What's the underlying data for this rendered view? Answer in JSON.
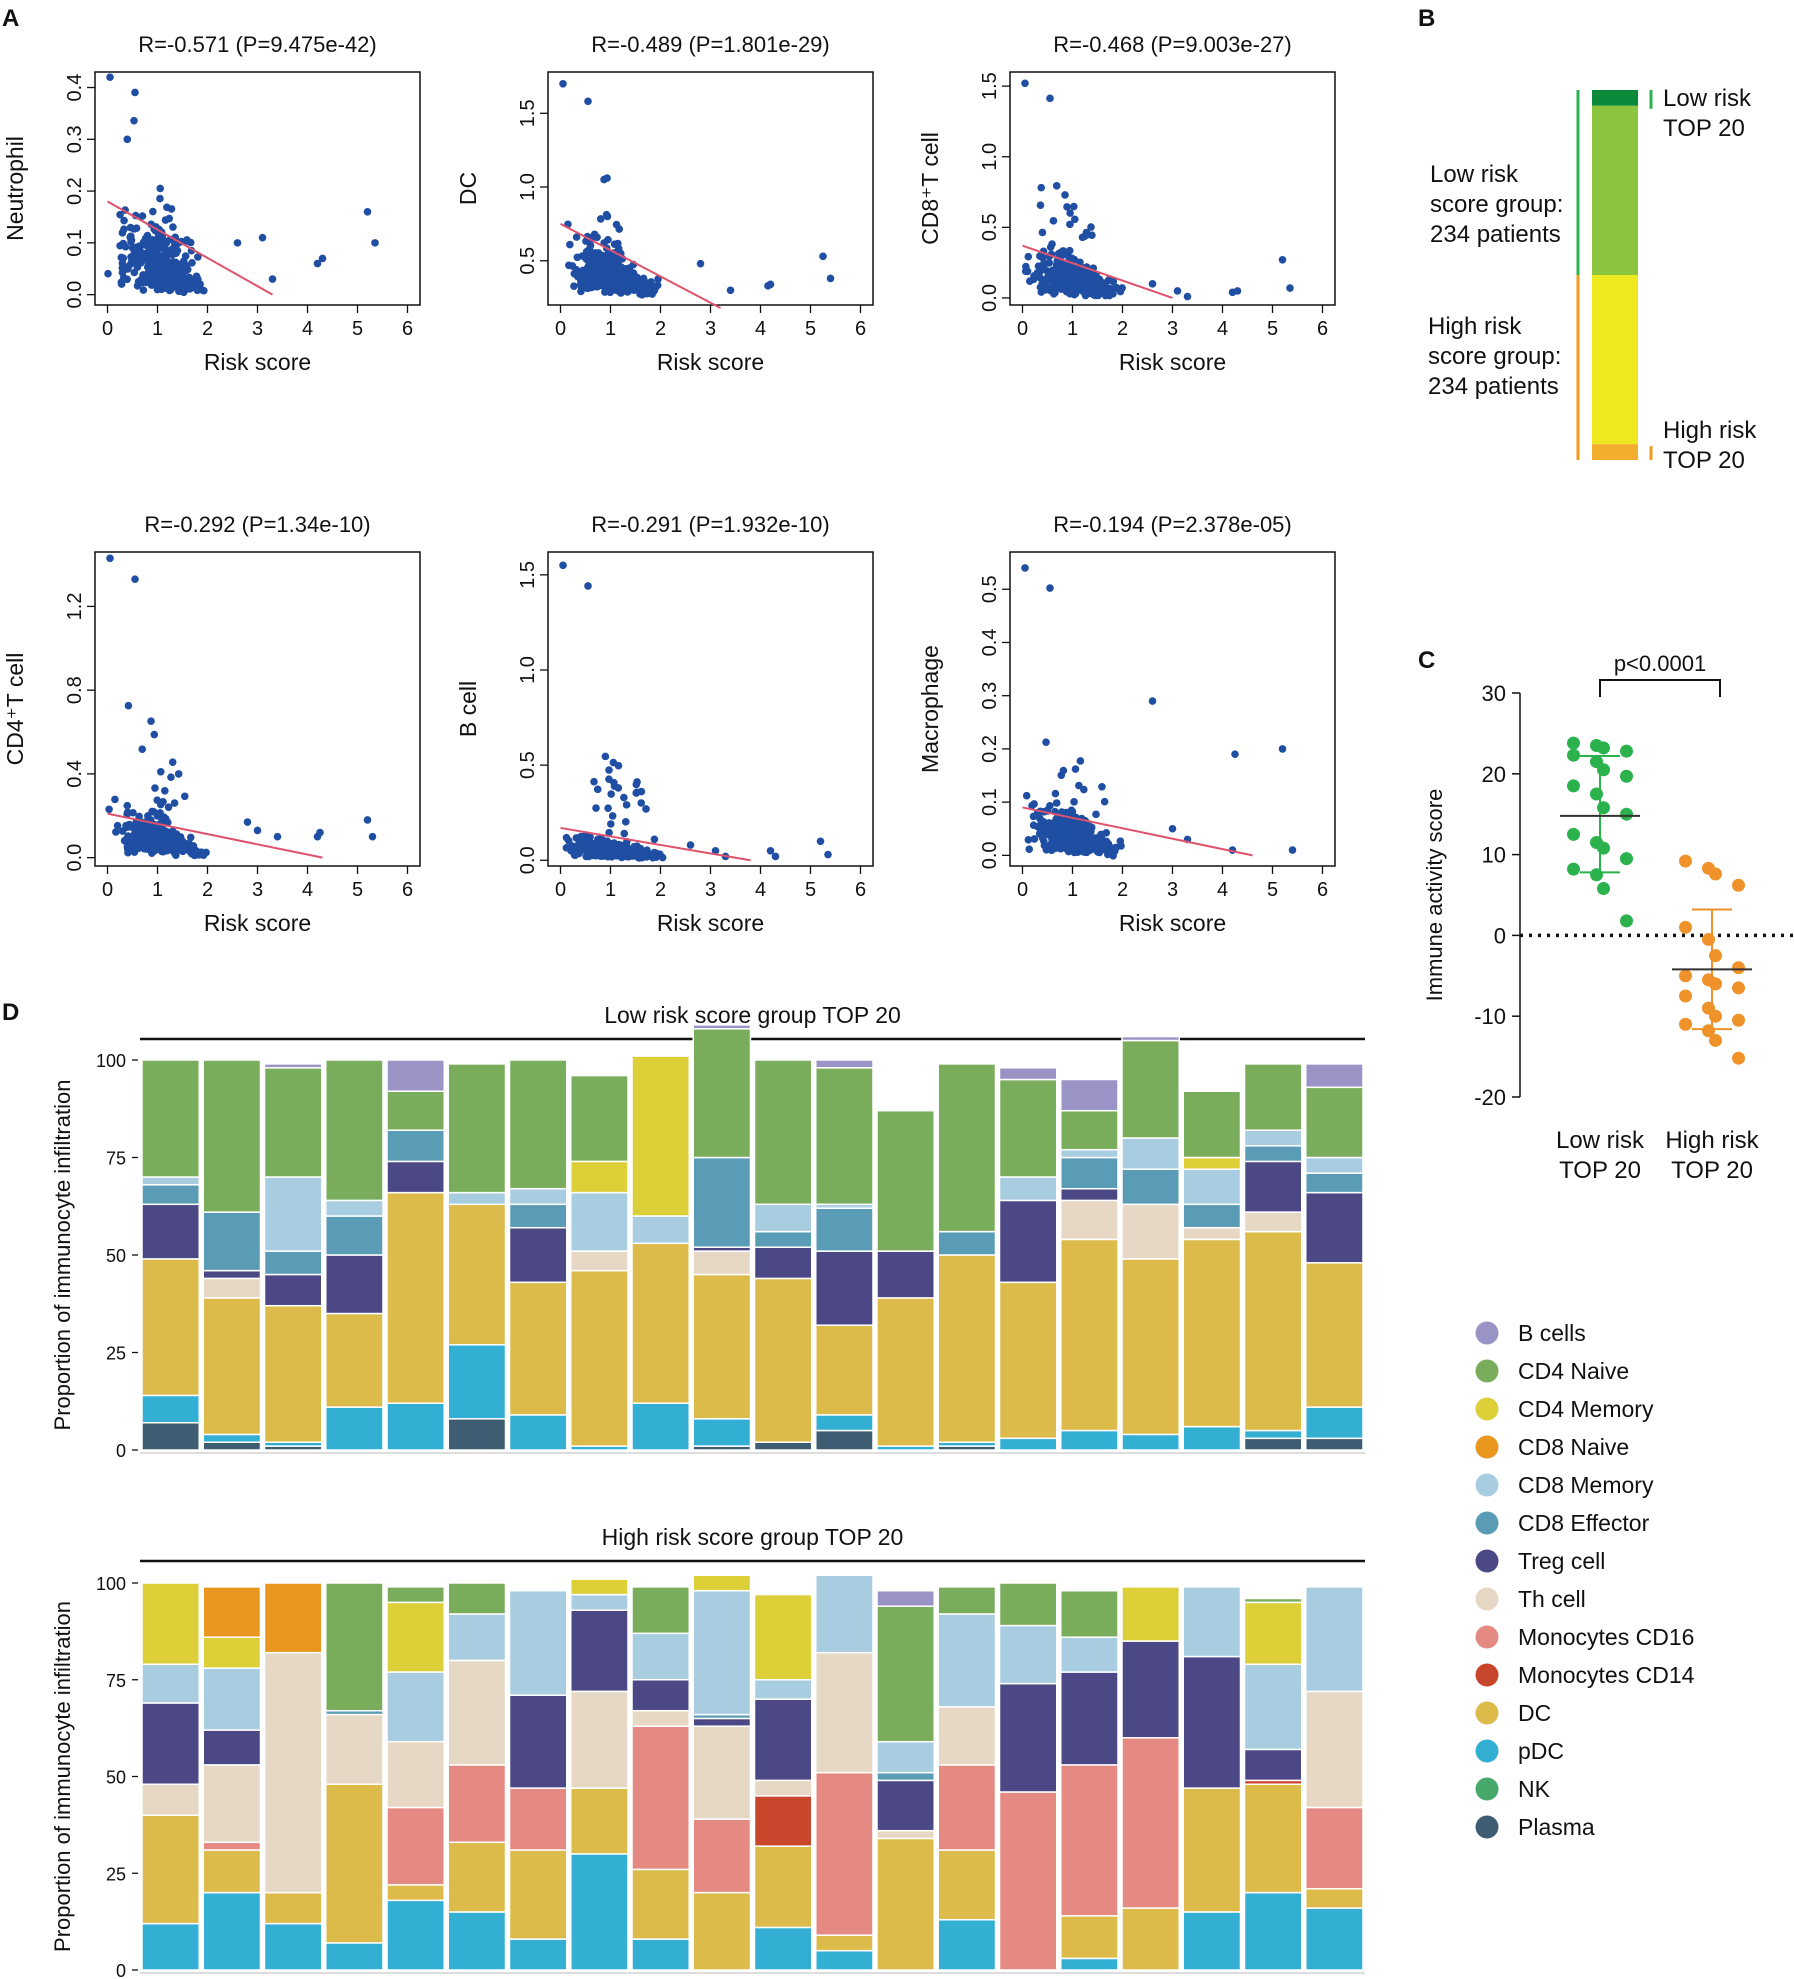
{
  "colors": {
    "point": "#1f4ea3",
    "fit_line": "#e0526b",
    "low_green": "#2bb24c",
    "high_orange": "#f0922a",
    "axis": "#111111",
    "bar_low_top": "#0a8a3a",
    "bar_low": "#8bc43f",
    "bar_high": "#eee81e",
    "bar_high_top": "#f3ae2e",
    "bracket_low": "#2bb24c",
    "bracket_high": "#f39a1e"
  },
  "panel_labels": {
    "a": "A",
    "b": "B",
    "c": "C",
    "d": "D"
  },
  "chart_data": [
    {
      "id": "scatter-neutrophil",
      "type": "scatter",
      "title": "R=-0.571 (P=9.475e-42)",
      "xlabel": "Risk score",
      "ylabel": "Neutrophil",
      "xlim": [
        -0.25,
        6.25
      ],
      "ylim": [
        -0.02,
        0.43
      ],
      "xticks": [
        "0",
        "1",
        "2",
        "3",
        "4",
        "5",
        "6"
      ],
      "yticks": [
        "0.0",
        "0.1",
        "0.2",
        "0.3",
        "0.4"
      ],
      "fit": {
        "x": [
          0,
          3.3
        ],
        "y": [
          0.18,
          0.0
        ]
      },
      "center_y": 0.09,
      "top_y": 0.42,
      "outliers": [
        [
          4.2,
          0.06
        ],
        [
          4.3,
          0.07
        ],
        [
          5.2,
          0.16
        ],
        [
          5.35,
          0.1
        ],
        [
          3.3,
          0.03
        ],
        [
          2.6,
          0.1
        ],
        [
          3.1,
          0.11
        ]
      ]
    },
    {
      "id": "scatter-dc",
      "type": "scatter",
      "title": "R=-0.489 (P=1.801e-29)",
      "xlabel": "Risk score",
      "ylabel": "DC",
      "xlim": [
        -0.25,
        6.25
      ],
      "ylim": [
        0.2,
        1.78
      ],
      "xticks": [
        "0",
        "1",
        "2",
        "3",
        "4",
        "5",
        "6"
      ],
      "yticks": [
        "0.5",
        "1.0",
        "1.5"
      ],
      "fit": {
        "x": [
          0,
          3.2
        ],
        "y": [
          0.75,
          0.18
        ]
      },
      "center_y": 0.5,
      "top_y": 1.7,
      "outliers": [
        [
          4.2,
          0.34
        ],
        [
          4.15,
          0.33
        ],
        [
          5.25,
          0.53
        ],
        [
          5.4,
          0.38
        ],
        [
          3.4,
          0.3
        ],
        [
          2.8,
          0.48
        ]
      ]
    },
    {
      "id": "scatter-cd8",
      "type": "scatter",
      "title": "R=-0.468 (P=9.003e-27)",
      "xlabel": "Risk score",
      "ylabel": "CD8⁺T cell",
      "xlim": [
        -0.25,
        6.25
      ],
      "ylim": [
        -0.05,
        1.6
      ],
      "xticks": [
        "0",
        "1",
        "2",
        "3",
        "4",
        "5",
        "6"
      ],
      "yticks": [
        "0.0",
        "0.5",
        "1.0",
        "1.5"
      ],
      "fit": {
        "x": [
          0,
          3.0
        ],
        "y": [
          0.37,
          0.0
        ]
      },
      "center_y": 0.2,
      "top_y": 1.52,
      "outliers": [
        [
          4.2,
          0.04
        ],
        [
          4.3,
          0.05
        ],
        [
          5.2,
          0.27
        ],
        [
          5.35,
          0.07
        ],
        [
          3.3,
          0.01
        ],
        [
          2.6,
          0.1
        ],
        [
          3.1,
          0.05
        ]
      ]
    },
    {
      "id": "scatter-cd4",
      "type": "scatter",
      "title": "R=-0.292 (P=1.34e-10)",
      "xlabel": "Risk score",
      "ylabel": "CD4⁺T cell",
      "xlim": [
        -0.25,
        6.25
      ],
      "ylim": [
        -0.04,
        1.46
      ],
      "xticks": [
        "0",
        "1",
        "2",
        "3",
        "4",
        "5",
        "6"
      ],
      "yticks": [
        "0.0",
        "0.4",
        "0.8",
        "1.2"
      ],
      "fit": {
        "x": [
          0,
          4.3
        ],
        "y": [
          0.21,
          0.0
        ]
      },
      "center_y": 0.14,
      "top_y": 1.43,
      "outliers": [
        [
          4.2,
          0.1
        ],
        [
          4.25,
          0.12
        ],
        [
          5.2,
          0.18
        ],
        [
          5.3,
          0.1
        ],
        [
          3.4,
          0.1
        ],
        [
          2.8,
          0.17
        ],
        [
          3.0,
          0.13
        ]
      ]
    },
    {
      "id": "scatter-bcell",
      "type": "scatter",
      "title": "R=-0.291 (P=1.932e-10)",
      "xlabel": "Risk score",
      "ylabel": "B cell",
      "xlim": [
        -0.25,
        6.25
      ],
      "ylim": [
        -0.03,
        1.62
      ],
      "xticks": [
        "0",
        "1",
        "2",
        "3",
        "4",
        "5",
        "6"
      ],
      "yticks": [
        "0.0",
        "0.5",
        "1.0",
        "1.5"
      ],
      "fit": {
        "x": [
          0,
          3.8
        ],
        "y": [
          0.17,
          0.0
        ]
      },
      "center_y": 0.08,
      "top_y": 1.55,
      "outliers": [
        [
          4.2,
          0.05
        ],
        [
          4.3,
          0.02
        ],
        [
          5.2,
          0.1
        ],
        [
          5.35,
          0.03
        ],
        [
          3.3,
          0.02
        ],
        [
          2.6,
          0.08
        ],
        [
          3.1,
          0.05
        ]
      ]
    },
    {
      "id": "scatter-macrophage",
      "type": "scatter",
      "title": "R=-0.194 (P=2.378e-05)",
      "xlabel": "Risk score",
      "ylabel": "Macrophage",
      "xlim": [
        -0.25,
        6.25
      ],
      "ylim": [
        -0.02,
        0.57
      ],
      "xticks": [
        "0",
        "1",
        "2",
        "3",
        "4",
        "5",
        "6"
      ],
      "yticks": [
        "0.0",
        "0.1",
        "0.2",
        "0.3",
        "0.4",
        "0.5"
      ],
      "fit": {
        "x": [
          0,
          4.6
        ],
        "y": [
          0.09,
          0.0
        ]
      },
      "center_y": 0.06,
      "top_y": 0.54,
      "outliers": [
        [
          4.25,
          0.19
        ],
        [
          5.2,
          0.2
        ],
        [
          5.4,
          0.01
        ],
        [
          4.2,
          0.01
        ],
        [
          3.3,
          0.03
        ],
        [
          2.6,
          0.29
        ],
        [
          3.0,
          0.05
        ]
      ]
    },
    {
      "id": "group-bar",
      "type": "bar",
      "segments": [
        {
          "name": "Low risk TOP 20",
          "share": 20,
          "color": "#0a8a3a"
        },
        {
          "name": "Low risk rest",
          "share": 214,
          "color": "#8bc43f"
        },
        {
          "name": "High risk rest",
          "share": 214,
          "color": "#eee81e"
        },
        {
          "name": "High risk TOP 20",
          "share": 20,
          "color": "#f3ae2e"
        }
      ],
      "labels": {
        "low_top": [
          "Low risk",
          "TOP 20"
        ],
        "low_group": [
          "Low risk",
          "score group:",
          "234 patients"
        ],
        "high_group": [
          "High risk",
          "score group:",
          "234 patients"
        ],
        "high_top": [
          "High risk",
          "TOP 20"
        ]
      }
    },
    {
      "id": "immune-activity",
      "type": "scatter",
      "ylabel": "Immune activity score",
      "ylim": [
        -20,
        30
      ],
      "yticks": [
        "-20",
        "-10",
        "0",
        "10",
        "20",
        "30"
      ],
      "categories": [
        [
          "Low risk",
          "TOP 20"
        ],
        [
          "High risk",
          "TOP 20"
        ]
      ],
      "annotation": "p<0.0001",
      "groups": [
        {
          "name": "Low risk TOP 20",
          "mean": 14.8,
          "sd_low": 7.8,
          "sd_high": 22.2,
          "values": [
            23.8,
            23.5,
            23.2,
            22.8,
            22.3,
            21.5,
            20.5,
            19.7,
            18.5,
            17.5,
            15.8,
            15.0,
            12.5,
            11.5,
            10.8,
            9.5,
            8.2,
            7.5,
            5.8,
            1.8
          ]
        },
        {
          "name": "High risk TOP 20",
          "mean": -4.2,
          "sd_low": -11.6,
          "sd_high": 3.2,
          "values": [
            9.2,
            8.3,
            7.6,
            6.2,
            1.0,
            -0.5,
            -2.5,
            -4.0,
            -5.0,
            -5.5,
            -6.0,
            -6.5,
            -7.5,
            -9.0,
            -10.0,
            -10.5,
            -11.0,
            -11.8,
            -13.0,
            -15.2
          ]
        }
      ]
    },
    {
      "id": "low-risk-composition",
      "type": "bar",
      "stacked": true,
      "title": "Low risk score group TOP 20",
      "ylabel": "Proportion of immunocyte infiltration",
      "yticks": [
        "0",
        "25",
        "50",
        "75",
        "100"
      ],
      "stack_order_bottom_to_top": [
        "Plasma",
        "pDC",
        "DC",
        "Monocytes CD14",
        "Monocytes CD16",
        "Th cell",
        "Treg cell",
        "CD8 Effector",
        "CD8 Memory",
        "CD4 Memory",
        "CD4 Naive",
        "B cells"
      ],
      "bars": [
        [
          7,
          7,
          35,
          0,
          0,
          0,
          14,
          5,
          2,
          0,
          30,
          0
        ],
        [
          2,
          2,
          35,
          0,
          0,
          5,
          2,
          15,
          0,
          0,
          39,
          0
        ],
        [
          1,
          1,
          35,
          0,
          0,
          0,
          8,
          6,
          19,
          0,
          28,
          1
        ],
        [
          0,
          11,
          24,
          0,
          0,
          0,
          15,
          10,
          4,
          0,
          36,
          0
        ],
        [
          0,
          12,
          54,
          0,
          0,
          0,
          8,
          8,
          0,
          0,
          10,
          8
        ],
        [
          8,
          19,
          36,
          0,
          0,
          0,
          0,
          0,
          3,
          0,
          33,
          0
        ],
        [
          0,
          9,
          34,
          0,
          0,
          0,
          14,
          6,
          4,
          0,
          33,
          0
        ],
        [
          0,
          1,
          45,
          0,
          0,
          5,
          0,
          0,
          15,
          8,
          22,
          0
        ],
        [
          0,
          12,
          41,
          0,
          0,
          0,
          0,
          0,
          7,
          41,
          0,
          0
        ],
        [
          1,
          7,
          37,
          0,
          0,
          6,
          1,
          23,
          0,
          0,
          33,
          1
        ],
        [
          2,
          0,
          42,
          0,
          0,
          0,
          8,
          4,
          7,
          0,
          37,
          0
        ],
        [
          5,
          4,
          23,
          0,
          0,
          0,
          19,
          11,
          1,
          0,
          35,
          2
        ],
        [
          0,
          1,
          38,
          0,
          0,
          0,
          12,
          0,
          0,
          0,
          36,
          0
        ],
        [
          1,
          1,
          48,
          0,
          0,
          0,
          0,
          6,
          0,
          0,
          43,
          0
        ],
        [
          0,
          3,
          40,
          0,
          0,
          0,
          21,
          0,
          6,
          0,
          25,
          3
        ],
        [
          0,
          5,
          49,
          0,
          0,
          10,
          3,
          8,
          2,
          0,
          10,
          8
        ],
        [
          0,
          4,
          45,
          0,
          0,
          14,
          0,
          9,
          8,
          0,
          25,
          1
        ],
        [
          0,
          6,
          48,
          0,
          0,
          3,
          0,
          6,
          9,
          3,
          17,
          0
        ],
        [
          3,
          2,
          51,
          0,
          0,
          5,
          13,
          4,
          4,
          0,
          17,
          0
        ],
        [
          3,
          8,
          37,
          0,
          0,
          0,
          18,
          5,
          4,
          0,
          18,
          6
        ]
      ]
    },
    {
      "id": "high-risk-composition",
      "type": "bar",
      "stacked": true,
      "title": "High risk score group TOP 20",
      "ylabel": "Proportion of immunocyte infiltration",
      "yticks": [
        "0",
        "25",
        "50",
        "75",
        "100"
      ],
      "stack_order_bottom_to_top": [
        "Plasma",
        "pDC",
        "DC",
        "Monocytes CD14",
        "Monocytes CD16",
        "Th cell",
        "Treg cell",
        "CD8 Effector",
        "CD8 Memory",
        "CD4 Memory",
        "CD4 Naive",
        "B cells",
        "CD8 Naive"
      ],
      "bars": [
        [
          0,
          12,
          28,
          0,
          0,
          8,
          21,
          0,
          10,
          21,
          0,
          0,
          0
        ],
        [
          0,
          20,
          11,
          0,
          2,
          20,
          9,
          0,
          16,
          8,
          0,
          0,
          13
        ],
        [
          0,
          12,
          8,
          0,
          0,
          62,
          0,
          0,
          0,
          0,
          0,
          0,
          18
        ],
        [
          0,
          7,
          41,
          0,
          0,
          18,
          0,
          1,
          0,
          0,
          33,
          0,
          0
        ],
        [
          0,
          18,
          4,
          0,
          20,
          17,
          0,
          0,
          18,
          18,
          4,
          0,
          0
        ],
        [
          0,
          15,
          18,
          0,
          20,
          27,
          0,
          0,
          12,
          0,
          8,
          0,
          0
        ],
        [
          0,
          8,
          23,
          0,
          16,
          0,
          24,
          0,
          27,
          0,
          0,
          0,
          0
        ],
        [
          0,
          30,
          17,
          0,
          0,
          25,
          21,
          0,
          4,
          4,
          0,
          0,
          0
        ],
        [
          0,
          8,
          18,
          0,
          37,
          4,
          8,
          0,
          12,
          0,
          12,
          0,
          0
        ],
        [
          0,
          0,
          20,
          0,
          19,
          24,
          2,
          1,
          32,
          4,
          0,
          0,
          0
        ],
        [
          0,
          11,
          21,
          13,
          0,
          4,
          21,
          0,
          5,
          22,
          0,
          0,
          0
        ],
        [
          0,
          5,
          4,
          0,
          42,
          31,
          0,
          0,
          20,
          0,
          0,
          0,
          0
        ],
        [
          0,
          0,
          34,
          0,
          0,
          2,
          13,
          2,
          8,
          0,
          35,
          4,
          0
        ],
        [
          0,
          13,
          18,
          0,
          22,
          15,
          0,
          0,
          24,
          0,
          7,
          0,
          0
        ],
        [
          0,
          0,
          0,
          0,
          46,
          0,
          28,
          0,
          15,
          0,
          11,
          0,
          0
        ],
        [
          0,
          3,
          11,
          0,
          39,
          0,
          24,
          0,
          9,
          0,
          12,
          0,
          0
        ],
        [
          0,
          0,
          16,
          0,
          44,
          0,
          25,
          0,
          0,
          14,
          0,
          0,
          0
        ],
        [
          0,
          15,
          32,
          0,
          0,
          0,
          34,
          0,
          18,
          0,
          0,
          0,
          0
        ],
        [
          0,
          20,
          28,
          1,
          0,
          0,
          8,
          0,
          22,
          16,
          1,
          0,
          0
        ],
        [
          0,
          16,
          5,
          0,
          21,
          30,
          0,
          0,
          27,
          0,
          0,
          0,
          0
        ]
      ]
    }
  ],
  "legend": [
    {
      "name": "B cells",
      "color": "#9a93c6"
    },
    {
      "name": "CD4 Naive",
      "color": "#7aad5b"
    },
    {
      "name": "CD4 Memory",
      "color": "#dccf38"
    },
    {
      "name": "CD8 Naive",
      "color": "#e8961e"
    },
    {
      "name": "CD8 Memory",
      "color": "#a8cde0"
    },
    {
      "name": "CD8 Effector",
      "color": "#5a9cb5"
    },
    {
      "name": "Treg cell",
      "color": "#4c4886"
    },
    {
      "name": "Th cell",
      "color": "#e6d8c4"
    },
    {
      "name": "Monocytes CD16",
      "color": "#e58a83"
    },
    {
      "name": "Monocytes CD14",
      "color": "#c8462c"
    },
    {
      "name": "DC",
      "color": "#dcbb4a"
    },
    {
      "name": "pDC",
      "color": "#33afd4"
    },
    {
      "name": "NK",
      "color": "#46a86b"
    },
    {
      "name": "Plasma",
      "color": "#3f5d72"
    }
  ]
}
